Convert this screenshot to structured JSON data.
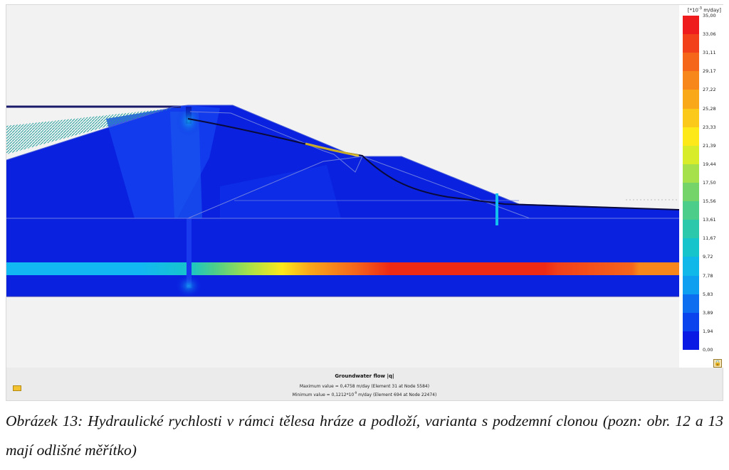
{
  "legend": {
    "unit_prefix": "[*10",
    "unit_exp": "-3",
    "unit_suffix": " m/day]",
    "ticks": [
      "35,00",
      "33,06",
      "31,11",
      "29,17",
      "27,22",
      "25,28",
      "23,33",
      "21,39",
      "19,44",
      "17,50",
      "15,56",
      "13,61",
      "11,67",
      "9,72",
      "7,78",
      "5,83",
      "3,89",
      "1,94",
      "0,00"
    ],
    "colors": [
      "#ee1c1c",
      "#f2401a",
      "#f5651a",
      "#f7871a",
      "#f9a81a",
      "#fbc91a",
      "#fde81a",
      "#d8ec2a",
      "#a6e04a",
      "#74d46a",
      "#4ccd8a",
      "#2bc8ac",
      "#16c4cc",
      "#10b8ea",
      "#0f9ff0",
      "#0d6ff0",
      "#0b44ec",
      "#0a1ae4"
    ],
    "lock_icon": "lock-icon"
  },
  "footer": {
    "title": "Groundwater flow |q|",
    "max_line": "Maximum value = 0,4758 m/day (Element 31 at Node 5584)",
    "min_pre": "Minimum value = 0,1212*10",
    "min_exp": "-9",
    "min_post": " m/day (Element 694 at Node 22474)",
    "marker_icon": "yellow-marker-icon"
  },
  "caption": "Obrázek 13: Hydraulické rychlosti v rámci tělesa hráze a podloží, varianta s podzemní clonou (pozn: obr. 12 a 13 mají odlišné měřítko)",
  "colors": {
    "background_field": "#0a22e0",
    "stripe": "#12c0f0",
    "hot": "#ee2a14"
  }
}
